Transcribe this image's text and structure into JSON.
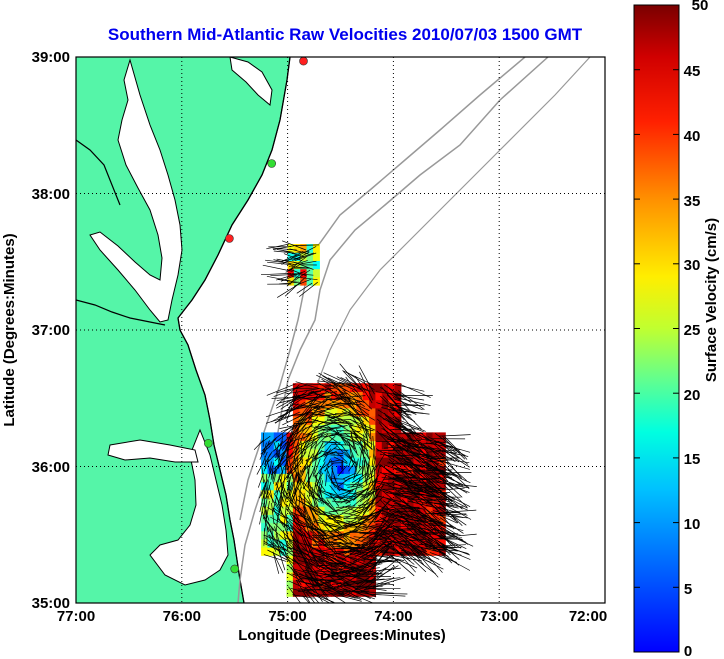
{
  "chart_data": {
    "type": "heatmap",
    "title": "Southern Mid-Atlantic Raw Velocities 2010/07/03 1500 GMT",
    "xlabel": "Longitude (Degrees:Minutes)",
    "ylabel": "Latitude (Degrees:Minutes)",
    "x_ticks": [
      "77:00",
      "76:00",
      "75:00",
      "74:00",
      "73:00",
      "72:00"
    ],
    "y_ticks": [
      "39:00",
      "38:00",
      "37:00",
      "36:00",
      "35:00"
    ],
    "xlim": [
      -77,
      -72
    ],
    "ylim": [
      35,
      39
    ],
    "grid": true,
    "colorbar": {
      "label": "Surface Velocity (cm/s)",
      "range": [
        0,
        50
      ],
      "ticks": [
        "50",
        "45",
        "40",
        "35",
        "30",
        "25",
        "20",
        "15",
        "10",
        "5",
        "0"
      ],
      "colormap": "jet"
    },
    "colors": {
      "land": "#55f5a8",
      "coastline": "#000000",
      "bathymetry": "#999999",
      "grid": "#000000",
      "title": "#0000ee",
      "vectors": "#000000"
    },
    "stations": [
      {
        "lon": -74.85,
        "lat": 38.97,
        "color": "#ff2020"
      },
      {
        "lon": -75.15,
        "lat": 38.22,
        "color": "#33dd33"
      },
      {
        "lon": -75.55,
        "lat": 37.67,
        "color": "#ff2020"
      },
      {
        "lon": -75.75,
        "lat": 36.17,
        "color": "#33dd33"
      },
      {
        "lon": -75.5,
        "lat": 35.25,
        "color": "#33dd33"
      }
    ],
    "velocity_regions": [
      {
        "name": "upper patch",
        "lon_range": [
          -75.0,
          -74.72
        ],
        "lat_range": [
          37.33,
          37.58
        ],
        "speed_range_cm_s": [
          10,
          50
        ]
      },
      {
        "name": "main field",
        "lon_range": [
          -75.25,
          -73.55
        ],
        "lat_range": [
          35.05,
          36.58
        ],
        "speed_range_cm_s": [
          0,
          50
        ]
      }
    ]
  }
}
